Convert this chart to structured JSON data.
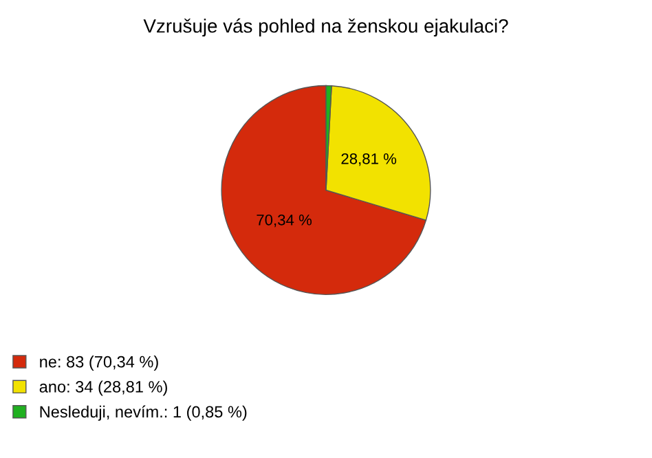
{
  "chart_data": {
    "type": "pie",
    "title": "Vzrušuje vás pohled na ženskou ejakulaci?",
    "categories": [
      "ne: 83 (70,34 %)",
      "ano: 34 (28,81 %)",
      "Nesleduji, nevím.: 1 (0,85 %)"
    ],
    "values": [
      70.34,
      28.81,
      0.85
    ],
    "colors": [
      "#d42a0c",
      "#f2e200",
      "#20b020"
    ],
    "value_labels": [
      "70,34 %",
      "28,81 %",
      null
    ],
    "legend": "bottom left"
  }
}
